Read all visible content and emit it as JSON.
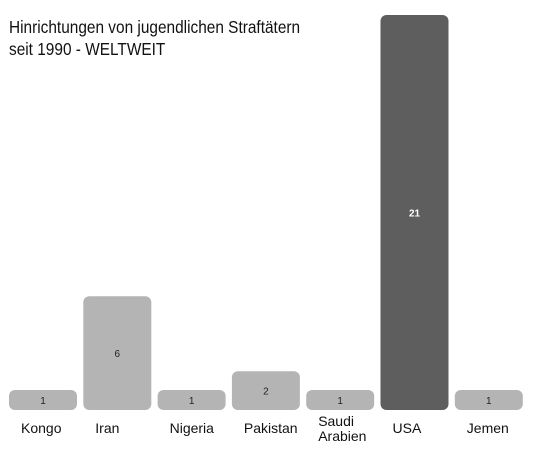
{
  "title": {
    "line1": "Hinrichtungen von jugendlichen Straftätern",
    "line2": "seit 1990 - WELTWEIT"
  },
  "colors": {
    "bar": "#b4b4b4",
    "highlight_bar": "#5e5e5e",
    "value_text": "#222222",
    "highlight_value_text": "#ffffff"
  },
  "chart_data": {
    "type": "bar",
    "title": "Hinrichtungen von jugendlichen Straftätern seit 1990 - WELTWEIT",
    "categories": [
      [
        "Kongo"
      ],
      [
        "Iran"
      ],
      [
        "Nigeria"
      ],
      [
        "Pakistan"
      ],
      [
        "Saudi",
        "Arabien"
      ],
      [
        "USA"
      ],
      [
        "Jemen"
      ]
    ],
    "values": [
      1,
      6,
      1,
      2,
      1,
      21,
      1
    ],
    "highlight_category": "USA",
    "xlabel": "",
    "ylabel": "",
    "ylim": [
      0,
      21
    ],
    "grid": false,
    "legend": "none",
    "data_labels": true
  }
}
